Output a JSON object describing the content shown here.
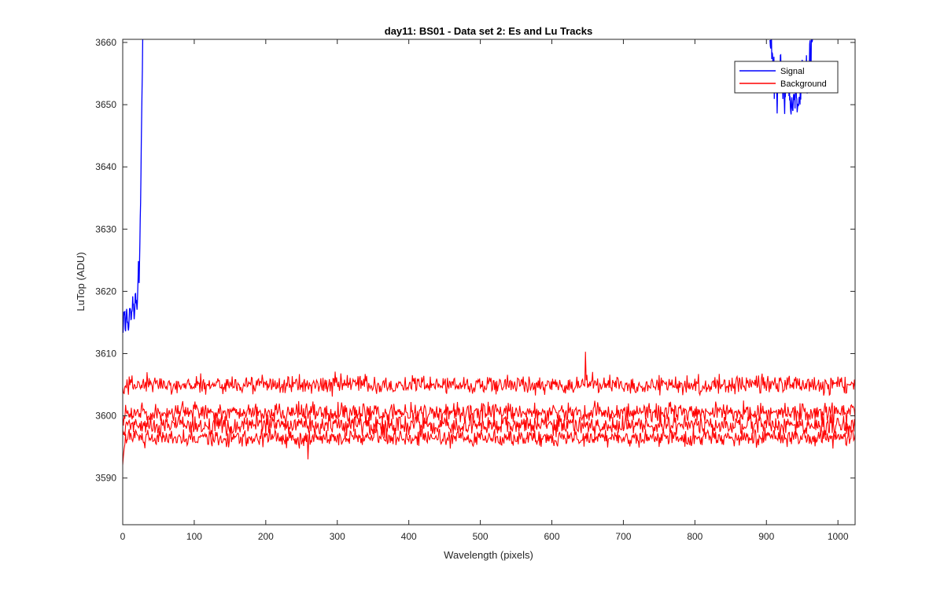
{
  "chart_data": {
    "type": "line",
    "title": "day11: BS01 - Data set 2: Es and Lu Tracks",
    "xlabel": "Wavelength (pixels)",
    "ylabel": "LuTop (ADU)",
    "xlim": [
      0,
      1024
    ],
    "ylim": [
      3582.5,
      3660.5
    ],
    "xticks": [
      0,
      100,
      200,
      300,
      400,
      500,
      600,
      700,
      800,
      900,
      1000
    ],
    "yticks": [
      3590,
      3600,
      3610,
      3620,
      3630,
      3640,
      3650,
      3660
    ],
    "grid": false,
    "legend_position": "top-right",
    "series": [
      {
        "name": "Signal",
        "color": "#0000ff",
        "segments": [
          {
            "x": [
              0,
              2,
              4,
              6,
              8,
              10,
              12,
              14,
              16,
              18,
              20,
              21,
              22,
              23,
              24,
              25,
              26,
              27,
              28
            ],
            "y": [
              3613,
              3618,
              3614,
              3617,
              3613,
              3618,
              3615,
              3619,
              3616,
              3620,
              3617,
              3619,
              3624,
              3622,
              3628,
              3635,
              3643,
              3652,
              3661
            ]
          },
          {
            "x": [
              905,
              910,
              915,
              920,
              925,
              930,
              935,
              940,
              945,
              950,
              955,
              960,
              965
            ],
            "y": [
              3661,
              3656,
              3652,
              3657,
              3651,
              3654,
              3649,
              3652,
              3650,
              3655,
              3653,
              3657,
              3661
            ]
          }
        ]
      },
      {
        "name": "Background",
        "color": "#ff0000",
        "band_means": [
          3605,
          3600.5,
          3598.5,
          3596.5
        ],
        "band_noise": [
          1.5,
          1.6,
          1.6,
          1.4
        ],
        "notable_peaks": [
          {
            "x": 647,
            "y": 3610.3
          },
          {
            "x": 259,
            "y": 3593
          }
        ]
      }
    ]
  }
}
